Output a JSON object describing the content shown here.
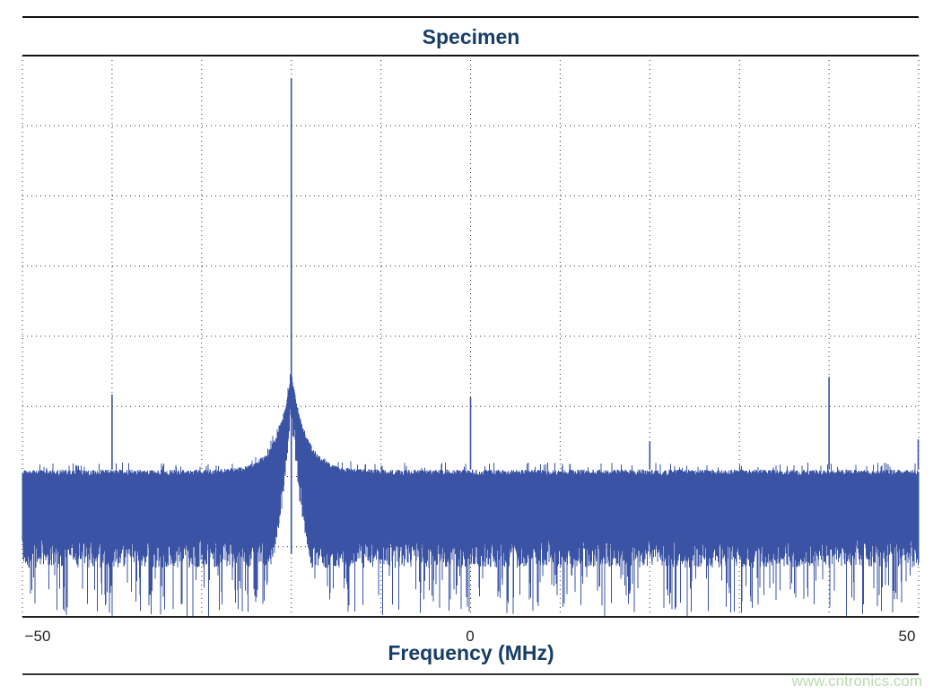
{
  "chart_data": {
    "type": "line",
    "title": "Specimen",
    "xlabel": "Frequency (MHz)",
    "ylabel": "",
    "xlim": [
      -50,
      50
    ],
    "ylim": [
      0,
      8
    ],
    "x_ticks": [
      "−50",
      "0",
      "50"
    ],
    "x_tick_values": [
      -50,
      0,
      50
    ],
    "grid": true,
    "grid_style": "dotted",
    "series_color": "#3a53a4",
    "noise_floor_upper": 2.1,
    "noise_floor_dense_lower": 0.7,
    "peaks": [
      {
        "x": -20,
        "y": 7.67
      },
      {
        "x": -40,
        "y": 3.17
      },
      {
        "x": 0,
        "y": 3.13
      },
      {
        "x": 20,
        "y": 2.5
      },
      {
        "x": 40,
        "y": 3.42
      },
      {
        "x": 50,
        "y": 2.53
      }
    ]
  },
  "watermark": "www.cntronics.com"
}
